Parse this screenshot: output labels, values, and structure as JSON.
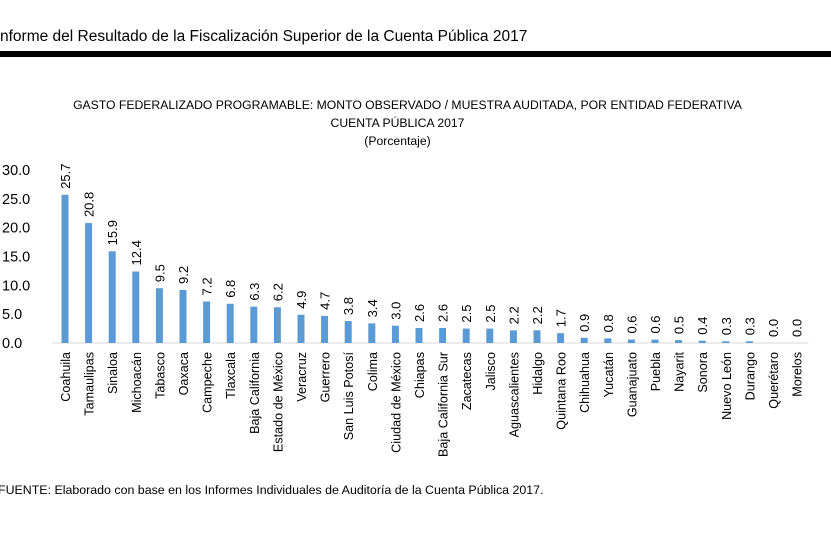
{
  "document": {
    "header": "nforme del Resultado de la Fiscalización Superior de la Cuenta Pública 2017",
    "source_note": "FUENTE: Elaborado con base en los Informes Individuales de Auditoría de la Cuenta Pública 2017."
  },
  "chart_data": {
    "type": "bar",
    "title": "GASTO FEDERALIZADO PROGRAMABLE: MONTO OBSERVADO / MUESTRA AUDITADA, POR ENTIDAD FEDERATIVA",
    "subtitle": "CUENTA PÚBLICA 2017",
    "unit_label": "(Porcentaje)",
    "xlabel": "",
    "ylabel": "",
    "ylim": [
      0,
      30
    ],
    "yticks": [
      0.0,
      5.0,
      10.0,
      15.0,
      20.0,
      25.0,
      30.0
    ],
    "grid": false,
    "legend": "none",
    "bar_color": "#5b9bd5",
    "categories": [
      "Coahuila",
      "Tamaulipas",
      "Sinaloa",
      "Michoacán",
      "Tabasco",
      "Oaxaca",
      "Campeche",
      "Tlaxcala",
      "Baja California",
      "Estado de México",
      "Veracruz",
      "Guerrero",
      "San Luis Potosí",
      "Colima",
      "Ciudad de México",
      "Chiapas",
      "Baja California Sur",
      "Zacatecas",
      "Jalisco",
      "Aguascalientes",
      "Hidalgo",
      "Quintana Roo",
      "Chihuahua",
      "Yucatán",
      "Guanajuato",
      "Puebla",
      "Nayarit",
      "Sonora",
      "Nuevo León",
      "Durango",
      "Querétaro",
      "Morelos"
    ],
    "values": [
      25.7,
      20.8,
      15.9,
      12.4,
      9.5,
      9.2,
      7.2,
      6.8,
      6.3,
      6.2,
      4.9,
      4.7,
      3.8,
      3.4,
      3.0,
      2.6,
      2.6,
      2.5,
      2.5,
      2.2,
      2.2,
      1.7,
      0.9,
      0.8,
      0.6,
      0.6,
      0.5,
      0.4,
      0.3,
      0.3,
      0.0,
      0.0
    ],
    "value_labels": [
      "25.7",
      "20.8",
      "15.9",
      "12.4",
      "9.5",
      "9.2",
      "7.2",
      "6.8",
      "6.3",
      "6.2",
      "4.9",
      "4.7",
      "3.8",
      "3.4",
      "3.0",
      "2.6",
      "2.6",
      "2.5",
      "2.5",
      "2.2",
      "2.2",
      "1.7",
      "0.9",
      "0.8",
      "0.6",
      "0.6",
      "0.5",
      "0.4",
      "0.3",
      "0.3",
      "0.0",
      "0.0"
    ]
  }
}
